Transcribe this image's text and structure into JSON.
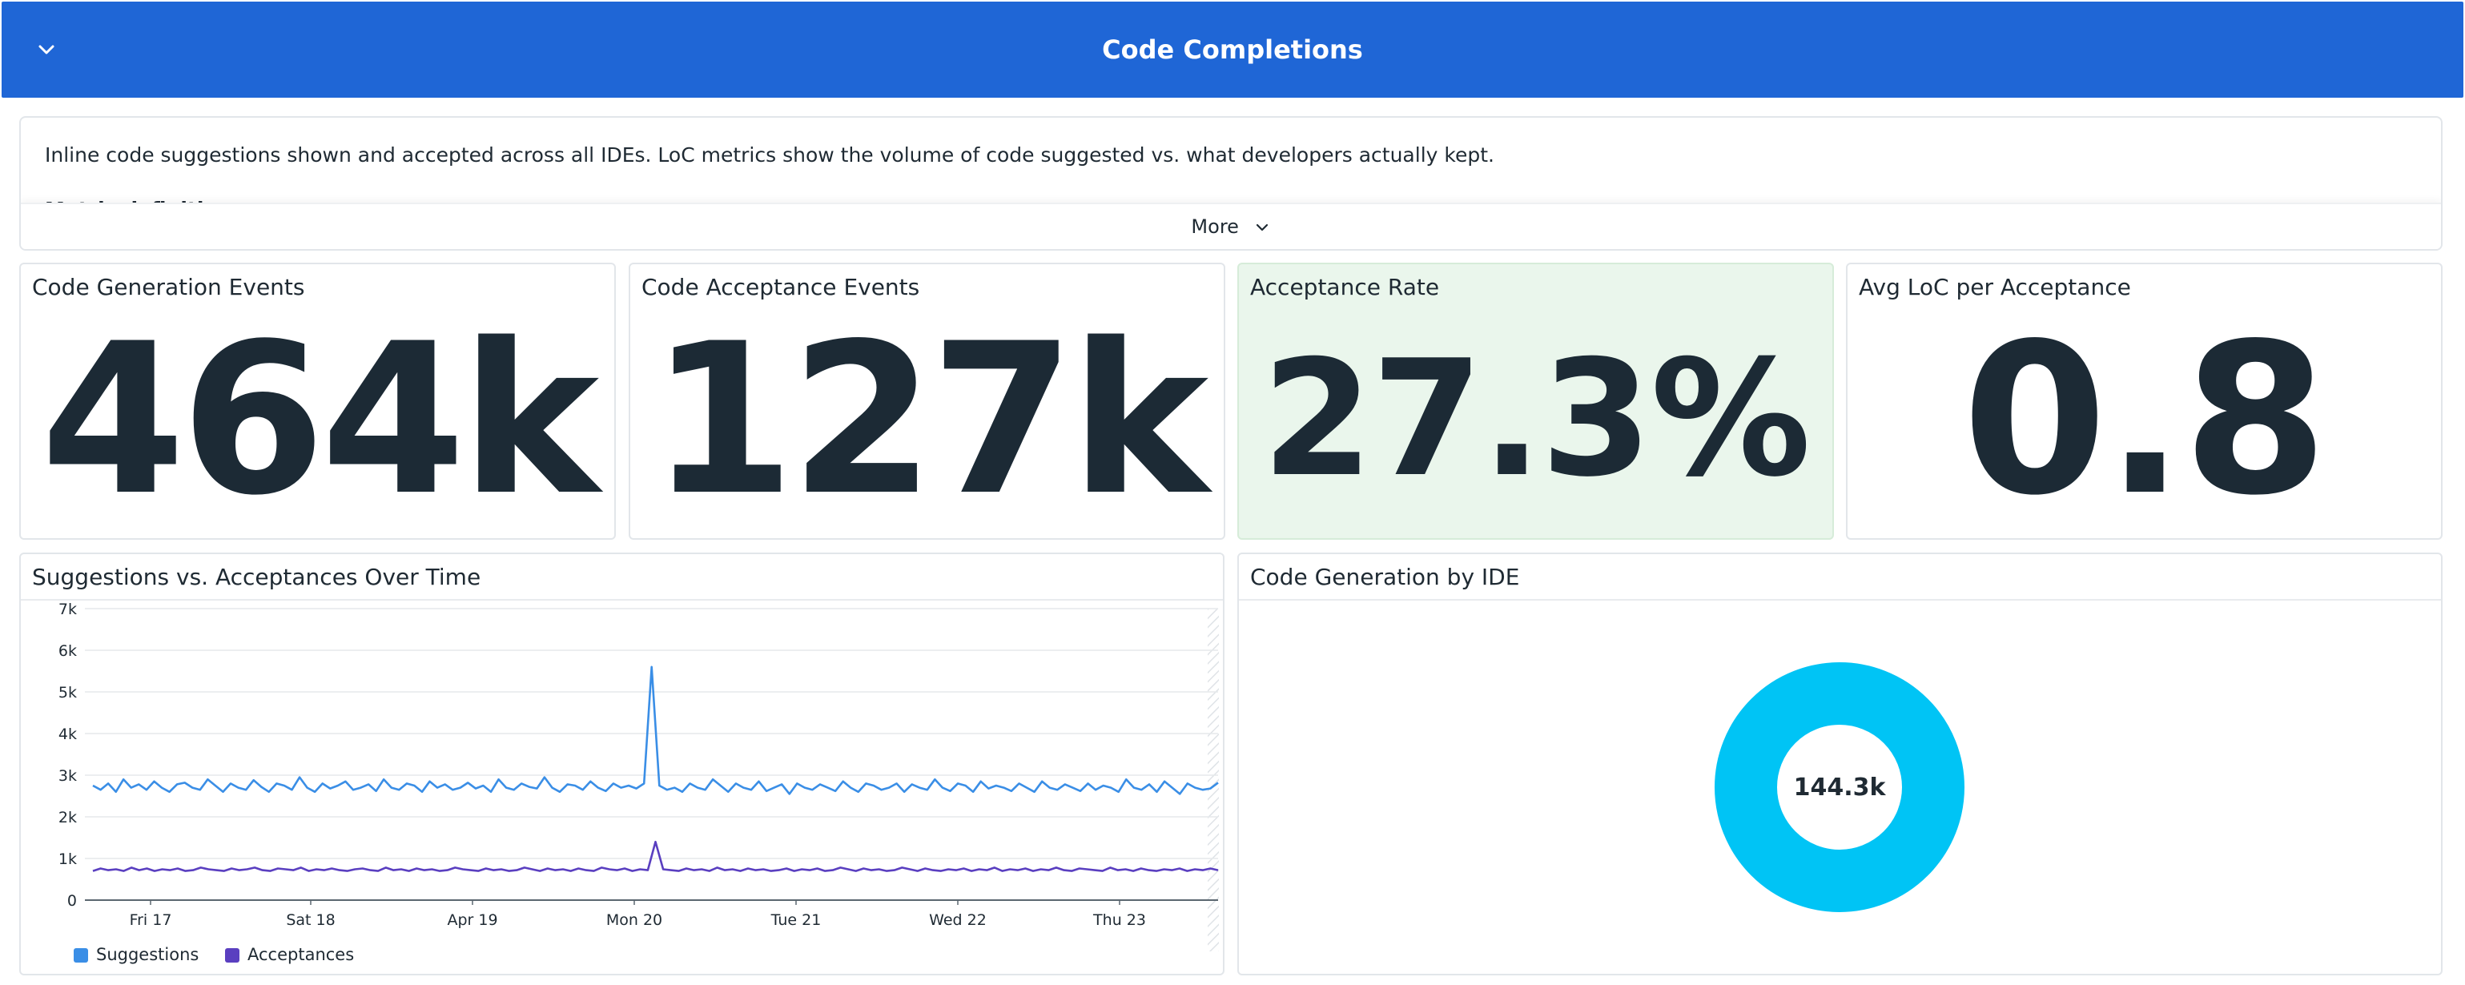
{
  "header": {
    "title": "Code Completions"
  },
  "note": {
    "text": "Inline code suggestions shown and accepted across all IDEs. LoC metrics show the volume of code suggested vs. what developers actually kept.",
    "subhead": "Metric definitions:",
    "more_label": "More"
  },
  "kpis": [
    {
      "title": "Code Generation Events",
      "value": "464k"
    },
    {
      "title": "Code Acceptance Events",
      "value": "127k"
    },
    {
      "title": "Acceptance Rate",
      "value": "27.3%"
    },
    {
      "title": "Avg LoC per Acceptance",
      "value": "0.8"
    }
  ],
  "timeseries": {
    "title": "Suggestions vs. Acceptances Over Time",
    "y_ticks": [
      "0",
      "1k",
      "2k",
      "3k",
      "4k",
      "5k",
      "6k",
      "7k"
    ],
    "x_ticks": [
      "Fri 17",
      "Sat 18",
      "Apr 19",
      "Mon 20",
      "Tue 21",
      "Wed 22",
      "Thu 23"
    ],
    "legend": [
      {
        "name": "Suggestions",
        "color": "#3a8ee6"
      },
      {
        "name": "Acceptances",
        "color": "#5a3fc0"
      }
    ]
  },
  "donut": {
    "title": "Code Generation by IDE",
    "center_label": "144.3k",
    "color": "#00c4f5"
  },
  "chart_data": {
    "type": "line",
    "ylim": [
      0,
      7000
    ],
    "y_ticks": [
      "0",
      "1k",
      "2k",
      "3k",
      "4k",
      "5k",
      "6k",
      "7k"
    ],
    "x_ticks": [
      "Fri 17",
      "Sat 18",
      "Apr 19",
      "Mon 20",
      "Tue 21",
      "Wed 22",
      "Thu 23"
    ],
    "series": [
      {
        "name": "Suggestions",
        "color": "#3a8ee6",
        "values": [
          2750,
          2650,
          2800,
          2600,
          2900,
          2700,
          2780,
          2650,
          2850,
          2700,
          2600,
          2780,
          2820,
          2700,
          2650,
          2900,
          2750,
          2600,
          2800,
          2700,
          2650,
          2880,
          2720,
          2600,
          2800,
          2750,
          2650,
          2950,
          2700,
          2600,
          2800,
          2680,
          2750,
          2850,
          2650,
          2700,
          2780,
          2620,
          2900,
          2700,
          2650,
          2800,
          2750,
          2600,
          2850,
          2700,
          2780,
          2650,
          2700,
          2820,
          2680,
          2750,
          2600,
          2900,
          2700,
          2650,
          2800,
          2720,
          2680,
          2950,
          2700,
          2600,
          2780,
          2750,
          2650,
          2850,
          2700,
          2620,
          2800,
          2700,
          2750,
          2680,
          2800,
          5600,
          2750,
          2650,
          2700,
          2600,
          2800,
          2700,
          2650,
          2900,
          2750,
          2600,
          2800,
          2700,
          2650,
          2850,
          2620,
          2700,
          2780,
          2550,
          2800,
          2700,
          2650,
          2780,
          2700,
          2620,
          2850,
          2700,
          2600,
          2800,
          2750,
          2650,
          2700,
          2800,
          2600,
          2780,
          2700,
          2650,
          2900,
          2700,
          2620,
          2800,
          2750,
          2600,
          2850,
          2680,
          2750,
          2700,
          2620,
          2800,
          2700,
          2600,
          2850,
          2700,
          2650,
          2780,
          2700,
          2620,
          2800,
          2650,
          2750,
          2700,
          2600,
          2900,
          2700,
          2650,
          2780,
          2600,
          2850,
          2700,
          2550,
          2800,
          2700,
          2650,
          2680,
          2820
        ]
      },
      {
        "name": "Acceptances",
        "color": "#5a3fc0",
        "values": [
          700,
          760,
          720,
          740,
          700,
          780,
          720,
          760,
          700,
          740,
          720,
          760,
          700,
          720,
          780,
          740,
          720,
          700,
          760,
          720,
          740,
          780,
          720,
          700,
          760,
          740,
          720,
          780,
          700,
          740,
          720,
          760,
          720,
          700,
          740,
          760,
          720,
          700,
          780,
          720,
          740,
          700,
          760,
          720,
          740,
          700,
          720,
          780,
          740,
          720,
          700,
          760,
          720,
          740,
          700,
          720,
          780,
          740,
          700,
          760,
          720,
          740,
          700,
          760,
          720,
          700,
          780,
          740,
          720,
          760,
          700,
          740,
          720,
          1400,
          740,
          720,
          700,
          760,
          720,
          740,
          700,
          780,
          720,
          740,
          700,
          760,
          720,
          740,
          700,
          720,
          760,
          700,
          740,
          720,
          760,
          700,
          720,
          780,
          740,
          700,
          760,
          720,
          740,
          700,
          720,
          780,
          740,
          700,
          760,
          720,
          700,
          740,
          720,
          760,
          700,
          740,
          720,
          780,
          700,
          740,
          720,
          760,
          700,
          740,
          720,
          780,
          720,
          700,
          760,
          740,
          720,
          700,
          780,
          720,
          740,
          700,
          760,
          720,
          700,
          740,
          720,
          760,
          700,
          740,
          720,
          760,
          720
        ]
      }
    ]
  }
}
